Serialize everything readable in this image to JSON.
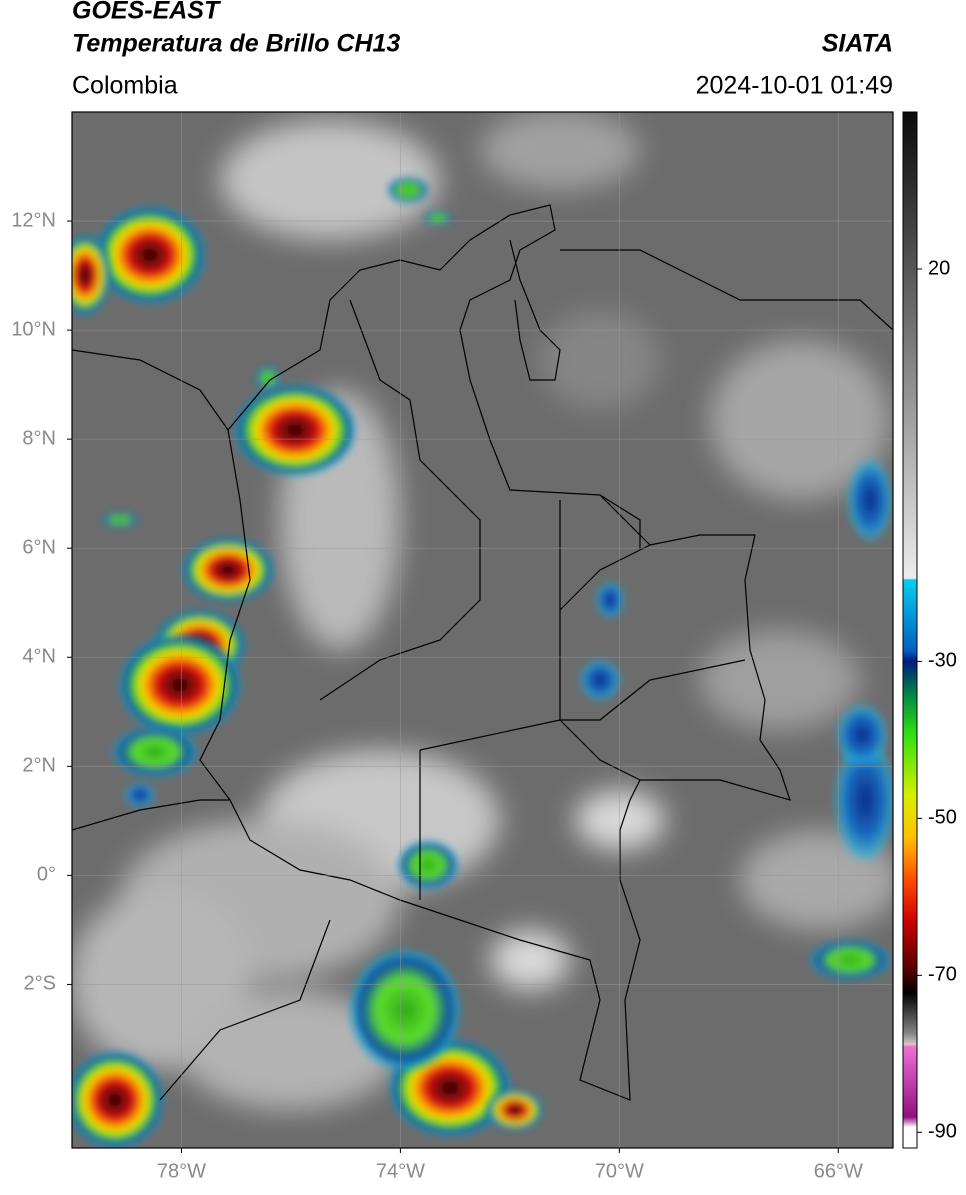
{
  "header": {
    "title": "GOES-EAST",
    "subtitle": "Temperatura de Brillo CH13",
    "region": "Colombia",
    "source": "SIATA",
    "timestamp": "2024-10-01 01:49"
  },
  "map": {
    "lonlim": [
      -80,
      -65
    ],
    "latlim": [
      -5,
      14
    ],
    "lat_ticks": [
      {
        "value": 12,
        "label": "12°N"
      },
      {
        "value": 10,
        "label": "10°N"
      },
      {
        "value": 8,
        "label": "8°N"
      },
      {
        "value": 6,
        "label": "6°N"
      },
      {
        "value": 4,
        "label": "4°N"
      },
      {
        "value": 2,
        "label": "2°N"
      },
      {
        "value": 0,
        "label": "0°"
      },
      {
        "value": -2,
        "label": "2°S"
      }
    ],
    "lon_ticks": [
      {
        "value": -78,
        "label": "78°W"
      },
      {
        "value": -74,
        "label": "74°W"
      },
      {
        "value": -70,
        "label": "70°W"
      },
      {
        "value": -66,
        "label": "66°W"
      }
    ]
  },
  "colorbar": {
    "lim": [
      -92,
      40
    ],
    "ticks": [
      20,
      -30,
      -50,
      -70,
      -90
    ]
  }
}
